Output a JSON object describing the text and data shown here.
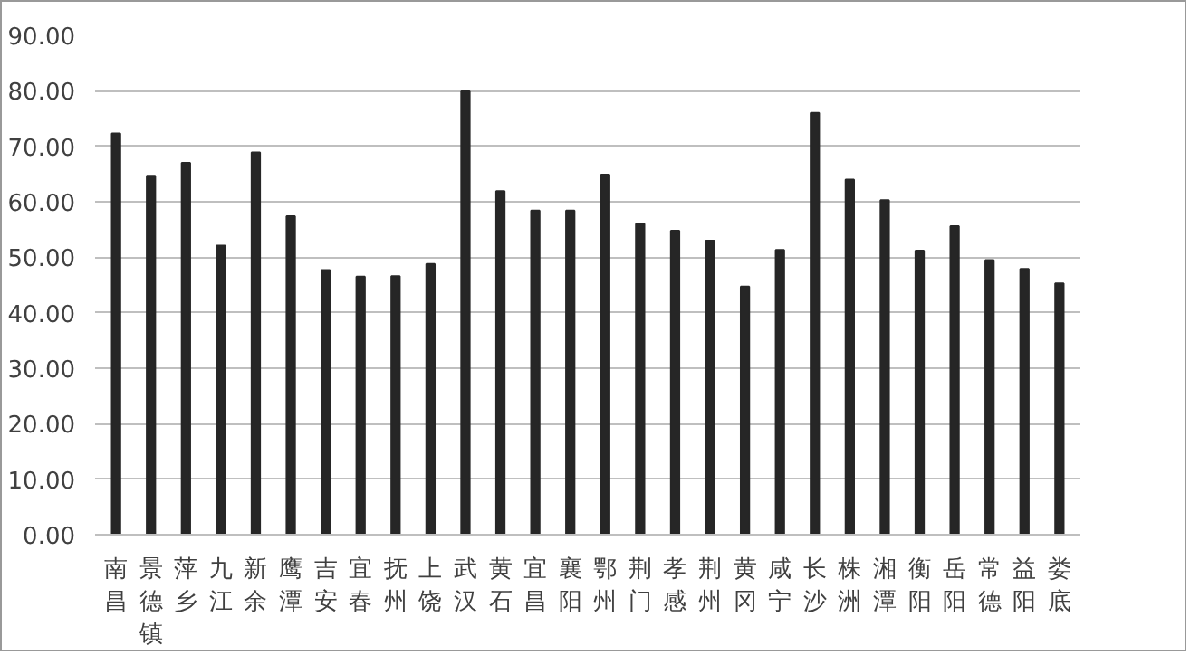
{
  "chart_data": {
    "type": "bar",
    "categories": [
      "南昌",
      "景德镇",
      "萍乡",
      "九江",
      "新余",
      "鹰潭",
      "吉安",
      "宜春",
      "抚州",
      "上饶",
      "武汉",
      "黄石",
      "宜昌",
      "襄阳",
      "鄂州",
      "荆门",
      "孝感",
      "荆州",
      "黄冈",
      "咸宁",
      "长沙",
      "株洲",
      "湘潭",
      "衡阳",
      "岳阳",
      "常德",
      "益阳",
      "娄底"
    ],
    "values": [
      72.3,
      64.7,
      67.0,
      52.1,
      68.9,
      57.4,
      47.7,
      46.5,
      46.6,
      48.8,
      79.9,
      61.9,
      58.4,
      58.4,
      64.9,
      56.0,
      54.8,
      53.0,
      44.7,
      51.3,
      76.0,
      64.0,
      60.3,
      51.2,
      55.6,
      49.5,
      47.9,
      45.3
    ],
    "color": "#262626",
    "ylim": [
      0,
      90
    ],
    "yticks": [
      {
        "value": 0,
        "label": "0.00"
      },
      {
        "value": 10,
        "label": "10.00"
      },
      {
        "value": 20,
        "label": "20.00"
      },
      {
        "value": 30,
        "label": "30.00"
      },
      {
        "value": 40,
        "label": "40.00"
      },
      {
        "value": 50,
        "label": "50.00"
      },
      {
        "value": 60,
        "label": "60.00"
      },
      {
        "value": 70,
        "label": "70.00"
      },
      {
        "value": 80,
        "label": "80.00"
      },
      {
        "value": 90,
        "label": "90.00"
      }
    ],
    "grid": "y"
  }
}
